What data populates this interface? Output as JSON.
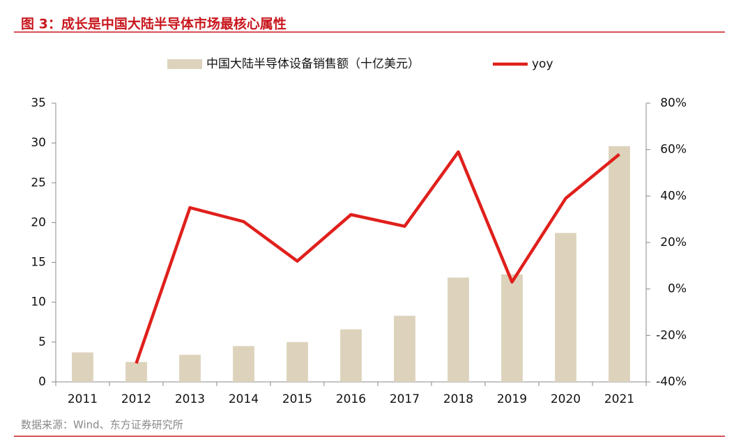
{
  "chart_data": {
    "type": "bar-line",
    "title": "图 3：成长是中国大陆半导体市场最核心属性",
    "source": "数据来源：Wind、东方证券研究所",
    "categories": [
      "2011",
      "2012",
      "2013",
      "2014",
      "2015",
      "2016",
      "2017",
      "2018",
      "2019",
      "2020",
      "2021"
    ],
    "series": [
      {
        "name": "中国大陆半导体设备销售额（十亿美元）",
        "type": "bar",
        "color": "#ddd3bc",
        "values": [
          3.7,
          2.5,
          3.4,
          4.5,
          5.0,
          6.6,
          8.3,
          13.1,
          13.5,
          18.7,
          29.6
        ]
      },
      {
        "name": "yoy",
        "type": "line",
        "axis": "y2",
        "color": "#e0201c",
        "values": [
          null,
          -32,
          35,
          29,
          12,
          32,
          27,
          59,
          3,
          39,
          58
        ]
      }
    ],
    "ylim": [
      0,
      35
    ],
    "yticks": [
      0,
      5,
      10,
      15,
      20,
      25,
      30,
      35
    ],
    "y2lim": [
      -40,
      80
    ],
    "y2ticks": [
      {
        "value": -40,
        "label": "-40%"
      },
      {
        "value": -20,
        "label": "-20%"
      },
      {
        "value": 0,
        "label": "0%"
      },
      {
        "value": 20,
        "label": "20%"
      },
      {
        "value": 40,
        "label": "40%"
      },
      {
        "value": 60,
        "label": "60%"
      },
      {
        "value": 80,
        "label": "80%"
      }
    ]
  }
}
